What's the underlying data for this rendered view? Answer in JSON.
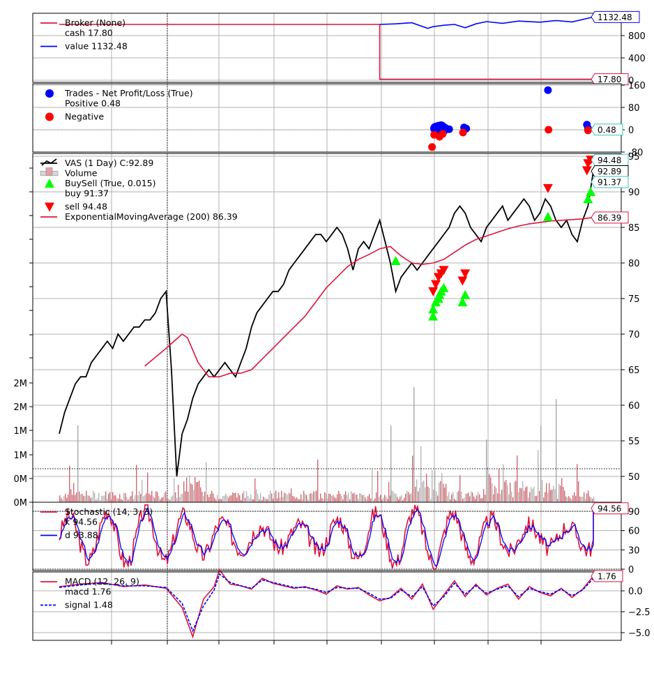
{
  "chart_data": [
    {
      "type": "line",
      "panel": "broker",
      "legend": [
        {
          "label": "Broker (None)",
          "color": "#dc143c",
          "marker": "line"
        },
        {
          "label": "cash 17.80",
          "color": null,
          "marker": "none"
        },
        {
          "label": "value 1132.48",
          "color": "#0000ff",
          "marker": "line"
        }
      ],
      "yticks": [
        0,
        400,
        800
      ],
      "ylim": [
        0,
        1200
      ],
      "series": [
        {
          "name": "cash",
          "color": "#dc143c",
          "x": [
            0.0,
            0.6,
            0.6,
            1.0
          ],
          "y": [
            1000,
            1000,
            17.8,
            17.8
          ]
        },
        {
          "name": "value",
          "color": "#0000ff",
          "x": [
            0.6,
            0.63,
            0.66,
            0.69,
            0.7,
            0.72,
            0.74,
            0.76,
            0.78,
            0.8,
            0.83,
            0.86,
            0.9,
            0.93,
            0.96,
            1.0
          ],
          "y": [
            1000,
            1010,
            1030,
            930,
            960,
            985,
            1000,
            940,
            1010,
            1050,
            1020,
            1060,
            1040,
            1070,
            1045,
            1132
          ]
        }
      ],
      "value_labels": [
        {
          "text": "1132.48",
          "value": 1132.48,
          "border": "#0000ff"
        },
        {
          "text": "17.80",
          "value": 17.8,
          "border": "#dc143c"
        }
      ]
    },
    {
      "type": "scatter",
      "panel": "trades",
      "legend": [
        {
          "label": "Trades - Net Profit/Loss (True)",
          "color": "#0000ff",
          "marker": "circle"
        },
        {
          "label": "Positive 0.48",
          "color": null,
          "marker": "none"
        },
        {
          "label": "Negative",
          "color": "#ff0000",
          "marker": "circle"
        }
      ],
      "yticks": [
        -80,
        0,
        80,
        160
      ],
      "ylim": [
        -80,
        160
      ],
      "series": [
        {
          "name": "positive",
          "color": "#0000ff",
          "x": [
            0.705,
            0.71,
            0.715,
            0.72,
            0.73,
            0.758,
            0.762,
            0.915,
            0.988,
            0.99
          ],
          "y": [
            5,
            8,
            10,
            3,
            2,
            8,
            4,
            142,
            18,
            5
          ]
        },
        {
          "name": "negative",
          "color": "#ff0000",
          "x": [
            0.698,
            0.702,
            0.712,
            0.718,
            0.756,
            0.916,
            0.99
          ],
          "y": [
            -62,
            -18,
            -25,
            -15,
            -10,
            0,
            -2
          ]
        }
      ],
      "value_labels": [
        {
          "text": "0.48",
          "value": 0.48,
          "border": "#40c0c0"
        }
      ]
    },
    {
      "type": "line",
      "panel": "price",
      "legend": [
        {
          "label": "VAS (1 Day) C:92.89",
          "color": "#000000",
          "marker": "line"
        },
        {
          "label": "Volume",
          "color": "#e8a0a8",
          "marker": "bar"
        },
        {
          "label": "BuySell (True, 0.015)",
          "color": "#00ff00",
          "marker": "triangle-up"
        },
        {
          "label": "buy 91.37",
          "color": null,
          "marker": "none"
        },
        {
          "label": "sell 94.48",
          "color": "#ff0000",
          "marker": "triangle-down"
        },
        {
          "label": "ExponentialMovingAverage (200) 86.39",
          "color": "#dc143c",
          "marker": "line"
        }
      ],
      "yticks_right": [
        50,
        55,
        60,
        65,
        70,
        75,
        80,
        85,
        90,
        95
      ],
      "ylim": [
        46,
        96
      ],
      "yticks_left_labels": [
        "0M",
        "0M",
        "1M",
        "1M",
        "2M",
        "2M"
      ],
      "series": [
        {
          "name": "VAS close",
          "color": "#000000",
          "x": [
            0.0,
            0.01,
            0.02,
            0.03,
            0.04,
            0.05,
            0.06,
            0.07,
            0.08,
            0.09,
            0.1,
            0.11,
            0.12,
            0.13,
            0.14,
            0.15,
            0.16,
            0.17,
            0.18,
            0.19,
            0.2,
            0.21,
            0.22,
            0.23,
            0.24,
            0.25,
            0.26,
            0.27,
            0.28,
            0.29,
            0.3,
            0.31,
            0.32,
            0.33,
            0.34,
            0.35,
            0.36,
            0.37,
            0.38,
            0.39,
            0.4,
            0.41,
            0.42,
            0.43,
            0.44,
            0.45,
            0.46,
            0.47,
            0.48,
            0.49,
            0.5,
            0.51,
            0.52,
            0.53,
            0.54,
            0.55,
            0.56,
            0.57,
            0.58,
            0.59,
            0.6,
            0.61,
            0.62,
            0.63,
            0.64,
            0.65,
            0.66,
            0.67,
            0.68,
            0.69,
            0.7,
            0.71,
            0.72,
            0.73,
            0.74,
            0.75,
            0.76,
            0.77,
            0.78,
            0.79,
            0.8,
            0.81,
            0.82,
            0.83,
            0.84,
            0.85,
            0.86,
            0.87,
            0.88,
            0.89,
            0.9,
            0.91,
            0.92,
            0.93,
            0.94,
            0.95,
            0.96,
            0.97,
            0.98,
            0.99,
            1.0
          ],
          "y": [
            56,
            59,
            61,
            63,
            64,
            64,
            66,
            67,
            68,
            69,
            68,
            70,
            69,
            70,
            71,
            71,
            72,
            72,
            73,
            75,
            76,
            65,
            50,
            56,
            58,
            61,
            63,
            64,
            65,
            64,
            65,
            66,
            65,
            64,
            66,
            68,
            71,
            73,
            74,
            75,
            76,
            76,
            77,
            79,
            80,
            81,
            82,
            83,
            84,
            84,
            83,
            84,
            85,
            84,
            82,
            79,
            82,
            83,
            82,
            84,
            86,
            83,
            80,
            76,
            78,
            79,
            80,
            79,
            80,
            81,
            82,
            83,
            84,
            85,
            87,
            88,
            87,
            85,
            84,
            83,
            85,
            86,
            87,
            88,
            86,
            87,
            88,
            89,
            88,
            86,
            87,
            89,
            88,
            86,
            85,
            86,
            84,
            83,
            86,
            88,
            92.9
          ]
        },
        {
          "name": "EMA 200",
          "color": "#dc143c",
          "x": [
            0.16,
            0.2,
            0.23,
            0.24,
            0.26,
            0.28,
            0.3,
            0.32,
            0.34,
            0.36,
            0.38,
            0.4,
            0.42,
            0.44,
            0.46,
            0.48,
            0.5,
            0.52,
            0.54,
            0.56,
            0.58,
            0.6,
            0.62,
            0.64,
            0.66,
            0.68,
            0.7,
            0.72,
            0.74,
            0.76,
            0.78,
            0.8,
            0.82,
            0.84,
            0.86,
            0.88,
            0.9,
            0.92,
            0.94,
            0.96,
            0.98,
            1.0
          ],
          "y": [
            65.5,
            68,
            70,
            69.5,
            66,
            64,
            64,
            64.5,
            64.5,
            65,
            66.5,
            68,
            69.5,
            71,
            72.5,
            74.5,
            76.5,
            78,
            79.5,
            80.5,
            81.2,
            82,
            82.3,
            81,
            80,
            79.8,
            80,
            80.5,
            81.5,
            82.5,
            83.3,
            83.8,
            84.3,
            84.8,
            85.2,
            85.5,
            85.7,
            85.9,
            86.0,
            86.1,
            86.2,
            86.4
          ]
        }
      ],
      "buy_marks": {
        "x": [
          0.63,
          0.7,
          0.7,
          0.705,
          0.71,
          0.712,
          0.715,
          0.72,
          0.755,
          0.76,
          0.915,
          0.99,
          0.995
        ],
        "y": [
          80.3,
          72.5,
          73.5,
          74.5,
          75,
          75.5,
          76,
          76.5,
          74.5,
          75.5,
          86.5,
          89,
          90
        ]
      },
      "sell_marks": {
        "x": [
          0.7,
          0.705,
          0.71,
          0.715,
          0.72,
          0.755,
          0.76,
          0.915,
          0.988,
          0.99,
          0.995
        ],
        "y": [
          76,
          77,
          78,
          78.5,
          79,
          77.5,
          78.5,
          90.5,
          93,
          94,
          94.5
        ]
      },
      "value_labels": [
        {
          "text": "94.48",
          "value": 94.48,
          "border": "#40c0c0"
        },
        {
          "text": "92.89",
          "value": 92.89,
          "border": "#000000"
        },
        {
          "text": "91.37",
          "value": 91.37,
          "border": "#40c0c0"
        },
        {
          "text": "86.39",
          "value": 86.39,
          "border": "#dc143c"
        }
      ]
    },
    {
      "type": "line",
      "panel": "stochastic",
      "legend": [
        {
          "label": "Stochastic (14, 3, 3)",
          "color": "#dc143c",
          "marker": "line"
        },
        {
          "label": "k 94.56",
          "color": null,
          "marker": "none"
        },
        {
          "label": "d 93.88",
          "color": "#0000ff",
          "marker": "line"
        }
      ],
      "yticks": [
        0,
        30,
        60,
        90
      ],
      "ylim": [
        -5,
        100
      ],
      "value_labels": [
        {
          "text": "94.56",
          "value": 94.56,
          "border": "#dc143c"
        }
      ]
    },
    {
      "type": "line",
      "panel": "macd",
      "legend": [
        {
          "label": "MACD (12, 26, 9)",
          "color": "#dc143c",
          "marker": "line"
        },
        {
          "label": "macd 1.76",
          "color": null,
          "marker": "none"
        },
        {
          "label": "signal 1.48",
          "color": "#0000ff",
          "marker": "dash"
        }
      ],
      "yticks": [
        -5.0,
        -2.5,
        0.0
      ],
      "ytick_labels": [
        "−5.0",
        "−2.5",
        "0.0"
      ],
      "ylim": [
        -6,
        2.5
      ],
      "series": [
        {
          "name": "macd",
          "color": "#dc143c",
          "x": [
            0.0,
            0.04,
            0.08,
            0.12,
            0.16,
            0.2,
            0.23,
            0.25,
            0.27,
            0.29,
            0.3,
            0.32,
            0.34,
            0.36,
            0.38,
            0.4,
            0.42,
            0.44,
            0.46,
            0.48,
            0.5,
            0.52,
            0.54,
            0.56,
            0.58,
            0.6,
            0.62,
            0.64,
            0.66,
            0.68,
            0.7,
            0.72,
            0.74,
            0.76,
            0.78,
            0.8,
            0.82,
            0.84,
            0.86,
            0.88,
            0.9,
            0.92,
            0.94,
            0.96,
            0.98,
            1.0
          ],
          "y": [
            0.5,
            0.8,
            1.0,
            0.5,
            0.7,
            0.3,
            -2.0,
            -5.5,
            -1.0,
            0.5,
            2.5,
            0.8,
            0.6,
            0.2,
            1.5,
            0.9,
            0.6,
            0.3,
            0.5,
            0.1,
            -0.4,
            0.6,
            0.2,
            0.4,
            -0.5,
            -1.2,
            -0.8,
            0.3,
            -1.0,
            0.8,
            -2.2,
            -0.5,
            1.2,
            -0.7,
            0.8,
            -0.5,
            0.3,
            0.8,
            -1.0,
            0.5,
            -0.2,
            -0.6,
            0.3,
            -0.8,
            0.2,
            1.76
          ]
        },
        {
          "name": "signal",
          "color": "#0000ff",
          "x": [
            0.0,
            0.04,
            0.08,
            0.12,
            0.16,
            0.2,
            0.23,
            0.25,
            0.27,
            0.29,
            0.3,
            0.32,
            0.34,
            0.36,
            0.38,
            0.4,
            0.42,
            0.44,
            0.46,
            0.48,
            0.5,
            0.52,
            0.54,
            0.56,
            0.58,
            0.6,
            0.62,
            0.64,
            0.66,
            0.68,
            0.7,
            0.72,
            0.74,
            0.76,
            0.78,
            0.8,
            0.82,
            0.84,
            0.86,
            0.88,
            0.9,
            0.92,
            0.94,
            0.96,
            0.98,
            1.0
          ],
          "y": [
            0.4,
            0.7,
            0.9,
            0.6,
            0.6,
            0.4,
            -1.5,
            -4.8,
            -1.8,
            0.1,
            2.0,
            1.0,
            0.6,
            0.3,
            1.3,
            1.0,
            0.7,
            0.4,
            0.4,
            0.2,
            -0.2,
            0.4,
            0.3,
            0.3,
            -0.3,
            -1.0,
            -0.9,
            0.1,
            -0.7,
            0.5,
            -1.8,
            -0.7,
            0.9,
            -0.4,
            0.6,
            -0.3,
            0.2,
            0.6,
            -0.7,
            0.3,
            -0.1,
            -0.4,
            0.2,
            -0.6,
            0.1,
            1.48
          ]
        }
      ],
      "value_labels": [
        {
          "text": "1.76",
          "value": 1.76,
          "border": "#dc143c"
        }
      ]
    }
  ]
}
